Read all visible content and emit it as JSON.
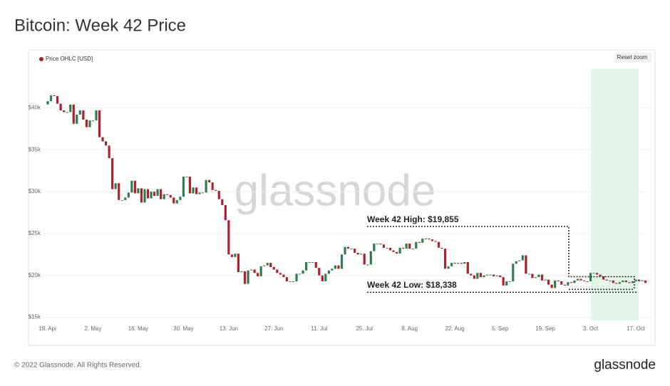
{
  "page": {
    "title": "Bitcoin: Week 42 Price",
    "reset_button": "Reset zoom",
    "watermark": "glassnode",
    "copyright": "© 2022 Glassnode. All Rights Reserved.",
    "logo": "glassnode"
  },
  "chart_data": {
    "type": "candlestick",
    "categories": [
      "18. Apr",
      null,
      null,
      null,
      null,
      null,
      null,
      null,
      null,
      null,
      null,
      null,
      null,
      null,
      "2. May",
      null,
      null,
      null,
      null,
      null,
      null,
      null,
      null,
      null,
      null,
      null,
      null,
      null,
      "16. May",
      null,
      null,
      null,
      null,
      null,
      null,
      null,
      null,
      null,
      null,
      null,
      null,
      null,
      "30. May",
      null,
      null,
      null,
      null,
      null,
      null,
      null,
      null,
      null,
      null,
      null,
      null,
      null,
      "13. Jun",
      null,
      null,
      null,
      null,
      null,
      null,
      null,
      null,
      null,
      null,
      null,
      null,
      null,
      "27. Jun",
      null,
      null,
      null,
      null,
      null,
      null,
      null,
      null,
      null,
      null,
      null,
      null,
      null,
      "11. Jul",
      null,
      null,
      null,
      null,
      null,
      null,
      null,
      null,
      null,
      null,
      null,
      null,
      null,
      "25. Jul",
      null,
      null,
      null,
      null,
      null,
      null,
      null,
      null,
      null,
      null,
      null,
      null,
      null,
      "8. Aug",
      null,
      null,
      null,
      null,
      null,
      null,
      null,
      null,
      null,
      null,
      null,
      null,
      null,
      "22. Aug",
      null,
      null,
      null,
      null,
      null,
      null,
      null,
      null,
      null,
      null,
      null,
      null,
      null,
      "5. Sep",
      null,
      null,
      null,
      null,
      null,
      null,
      null,
      null,
      null,
      null,
      null,
      null,
      null,
      "19. Sep",
      null,
      null,
      null,
      null,
      null,
      null,
      null,
      null,
      null,
      null,
      null,
      null,
      null,
      "3. Oct",
      null,
      null,
      null,
      null,
      null,
      null,
      null,
      null,
      null,
      null,
      null,
      null,
      null,
      "17. Oct",
      null,
      null,
      null
    ],
    "series": [
      {
        "name": "Price OHLC [USD]",
        "color": "#b0202a",
        "color_up": "#2e7d4f",
        "open": [
          40400,
          40800,
          41500,
          41400,
          40500,
          39700,
          39500,
          39500,
          40400,
          38100,
          39200,
          39700,
          38600,
          37700,
          38500,
          38500,
          39700,
          36500,
          36000,
          35500,
          34000,
          30300,
          31000,
          29000,
          29000,
          29300,
          29900,
          31300,
          29800,
          30400,
          28700,
          30300,
          29200,
          30000,
          29500,
          30300,
          29100,
          29700,
          29600,
          29300,
          28600,
          29000,
          29400,
          31800,
          31800,
          29800,
          30500,
          29700,
          29900,
          29900,
          31400,
          31100,
          30200,
          30100,
          29100,
          28400,
          26600,
          22500,
          22200,
          22600,
          20400,
          20500,
          19000,
          20600,
          20700,
          20300,
          19900,
          21100,
          21200,
          21500,
          21000,
          20700,
          20300,
          20100,
          19800,
          19300,
          19300,
          19300,
          20200,
          20200,
          20600,
          21600,
          21600,
          21600,
          20900,
          20000,
          19300,
          20200,
          20600,
          20800,
          21200,
          20800,
          22500,
          23400,
          23200,
          23200,
          22700,
          22500,
          22600,
          21300,
          21300,
          22900,
          23800,
          23800,
          23700,
          23300,
          23300,
          23000,
          22800,
          22600,
          23300,
          23200,
          23800,
          23200,
          23200,
          24000,
          23900,
          24400,
          24400,
          24300,
          24100,
          24000,
          23300,
          23200,
          20800,
          21100,
          21500,
          21400,
          21500,
          21400,
          21600,
          20200,
          20000,
          19600,
          20300,
          19800,
          20000,
          20100,
          20100,
          19900,
          20000,
          19800,
          18800,
          19300,
          19300,
          21400,
          21700,
          21800,
          22400,
          20200,
          20200,
          19700,
          19800,
          20100,
          19400,
          19500,
          18900,
          18500,
          19400,
          19300,
          18900,
          18800,
          19200,
          19100,
          19400,
          19600,
          19400,
          19300,
          19300,
          20300,
          20300,
          20100,
          19900,
          19500,
          19400,
          19400,
          19100,
          19000,
          19200,
          19400,
          19200,
          19100,
          19300,
          19500,
          19300,
          19400
        ],
        "close": [
          40800,
          41500,
          41400,
          40500,
          39700,
          39500,
          39500,
          40400,
          38100,
          39200,
          39700,
          38600,
          37700,
          38500,
          38500,
          39700,
          36500,
          36000,
          35500,
          34000,
          30300,
          31000,
          29000,
          29000,
          29300,
          29900,
          31300,
          29800,
          30400,
          28700,
          30300,
          29200,
          30000,
          29500,
          30300,
          29100,
          29700,
          29600,
          29300,
          28600,
          29000,
          29400,
          31800,
          31800,
          29800,
          30500,
          29700,
          29900,
          29900,
          31400,
          31100,
          30200,
          30100,
          29100,
          28400,
          26600,
          22500,
          22200,
          22600,
          20400,
          20500,
          19000,
          20600,
          20700,
          20300,
          19900,
          21100,
          21200,
          21500,
          21000,
          20700,
          20300,
          20100,
          19800,
          19300,
          19300,
          19300,
          20200,
          20200,
          20600,
          21600,
          21600,
          21600,
          20900,
          20000,
          19300,
          20200,
          20600,
          20800,
          21200,
          20800,
          22500,
          23400,
          23200,
          23200,
          22700,
          22500,
          22600,
          21300,
          21300,
          22900,
          23800,
          23800,
          23700,
          23300,
          23300,
          23000,
          22800,
          22600,
          23300,
          23200,
          23800,
          23200,
          23200,
          24000,
          23900,
          24400,
          24400,
          24300,
          24100,
          24000,
          23300,
          23200,
          20800,
          21100,
          21500,
          21400,
          21500,
          21400,
          21600,
          20200,
          20000,
          19600,
          20300,
          19800,
          20000,
          20100,
          20100,
          19900,
          20000,
          19800,
          18800,
          19300,
          19300,
          21400,
          21700,
          21800,
          22400,
          20200,
          20200,
          19700,
          19800,
          20100,
          19400,
          19500,
          18900,
          18500,
          19400,
          19300,
          18900,
          18800,
          19200,
          19100,
          19400,
          19600,
          19400,
          19300,
          19300,
          20300,
          20300,
          20100,
          19900,
          19500,
          19400,
          19400,
          19100,
          19000,
          19200,
          19400,
          19200,
          19100,
          19300,
          19500,
          19300,
          19400,
          19100
        ]
      }
    ],
    "ylim": [
      14200,
      44800
    ],
    "yticks": [
      {
        "value": 15000,
        "label": "$15k"
      },
      {
        "value": 20000,
        "label": "$20k"
      },
      {
        "value": 25000,
        "label": "$25k"
      },
      {
        "value": 30000,
        "label": "$30k"
      },
      {
        "value": 35000,
        "label": "$35k"
      },
      {
        "value": 40000,
        "label": "$40k"
      }
    ],
    "grid": true,
    "annotations": [
      {
        "text": "Week 42 High: $19,855",
        "value": 19855
      },
      {
        "text": "Week 42 Low: $18,338",
        "value": 18338
      }
    ]
  }
}
